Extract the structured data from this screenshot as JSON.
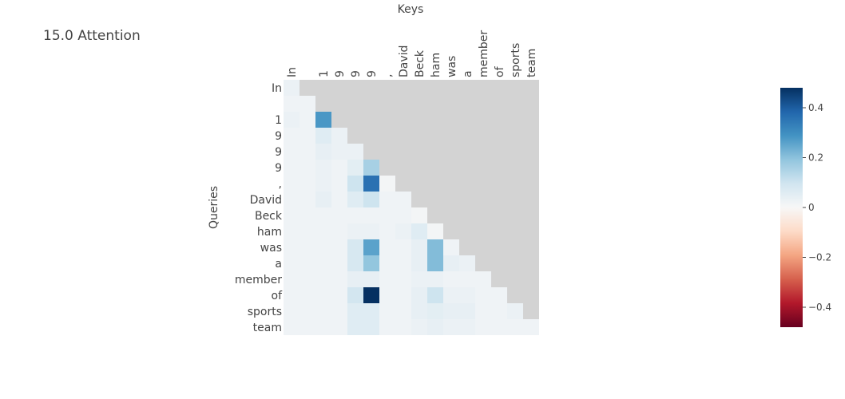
{
  "chart_data": {
    "type": "heatmap",
    "title": "15.0 Attention",
    "xlabel": "Keys",
    "ylabel": "Queries",
    "tokens": [
      "In",
      "",
      "1",
      "9",
      "9",
      "9",
      ",",
      "David",
      "Beck",
      "ham",
      "was",
      "a",
      "member",
      "of",
      "sports",
      "team"
    ],
    "masked_color": "#d3d3d3",
    "colorscale": "RdBu",
    "zmin": -0.48,
    "zmax": 0.48,
    "colorbar_ticks": [
      0.4,
      0.2,
      0,
      -0.2,
      -0.4
    ],
    "colorbar_tick_labels": [
      "0.4",
      "0.2",
      "0",
      "−0.2",
      "−0.4"
    ],
    "z": [
      [
        0.03
      ],
      [
        0.02,
        0.02
      ],
      [
        0.03,
        0.02,
        0.28
      ],
      [
        0.02,
        0.02,
        0.06,
        0.03
      ],
      [
        0.02,
        0.02,
        0.04,
        0.03,
        0.03
      ],
      [
        0.02,
        0.02,
        0.03,
        0.02,
        0.05,
        0.16
      ],
      [
        0.02,
        0.02,
        0.03,
        0.02,
        0.1,
        0.36,
        0.01
      ],
      [
        0.02,
        0.02,
        0.04,
        0.02,
        0.06,
        0.1,
        0.02,
        0.02
      ],
      [
        0.02,
        0.02,
        0.02,
        0.02,
        0.02,
        0.02,
        0.02,
        0.02,
        0.01
      ],
      [
        0.02,
        0.02,
        0.02,
        0.02,
        0.03,
        0.03,
        0.02,
        0.03,
        0.06,
        0.01
      ],
      [
        0.02,
        0.02,
        0.02,
        0.02,
        0.08,
        0.26,
        0.02,
        0.02,
        0.04,
        0.21,
        0.02
      ],
      [
        0.02,
        0.02,
        0.02,
        0.02,
        0.08,
        0.19,
        0.02,
        0.02,
        0.04,
        0.21,
        0.04,
        0.03
      ],
      [
        0.02,
        0.02,
        0.02,
        0.02,
        0.04,
        0.04,
        0.02,
        0.02,
        0.03,
        0.03,
        0.02,
        0.02,
        0.02
      ],
      [
        0.02,
        0.02,
        0.02,
        0.02,
        0.09,
        0.48,
        0.02,
        0.02,
        0.04,
        0.1,
        0.03,
        0.03,
        0.02,
        0.02
      ],
      [
        0.02,
        0.02,
        0.02,
        0.02,
        0.06,
        0.06,
        0.02,
        0.02,
        0.04,
        0.05,
        0.04,
        0.04,
        0.02,
        0.02,
        0.03
      ],
      [
        0.02,
        0.02,
        0.02,
        0.02,
        0.06,
        0.06,
        0.02,
        0.02,
        0.03,
        0.04,
        0.03,
        0.03,
        0.02,
        0.02,
        0.02,
        0.02
      ]
    ]
  }
}
